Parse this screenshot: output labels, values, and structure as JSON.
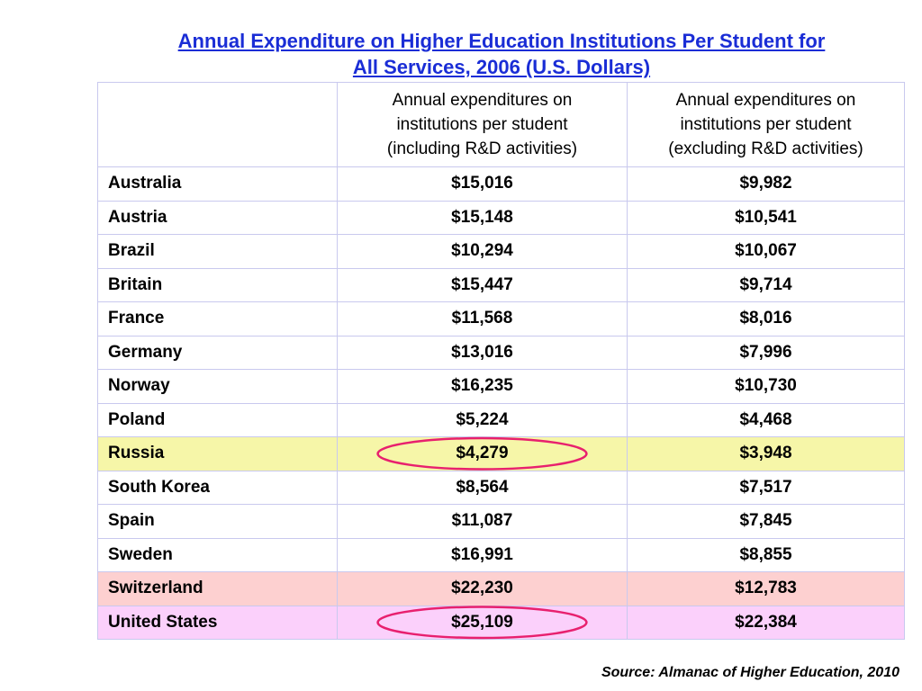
{
  "title_line1": "Annual Expenditure on Higher Education Institutions Per Student for",
  "title_line2": "All Services, 2006 (U.S. Dollars)",
  "source": "Source: Almanac of Higher Education, 2010",
  "colors": {
    "title": "#1a2dd6",
    "highlight_russia": "#f6f6a8",
    "highlight_switzerland": "#fdd0d0",
    "highlight_united_states": "#fbd0fb",
    "circle": "#e8206e"
  },
  "chart_data": {
    "type": "table",
    "title": "Annual Expenditure on Higher Education Institutions Per Student for All Services, 2006 (U.S. Dollars)",
    "columns": [
      "",
      "Annual expenditures on institutions per student (including R&D activities)",
      "Annual expenditures on institutions per student (excluding R&D activities)"
    ],
    "column_header_lines": [
      [],
      [
        "Annual expenditures on",
        "institutions per student",
        "(including R&D activities)"
      ],
      [
        "Annual expenditures on",
        "institutions per student",
        "(excluding R&D activities)"
      ]
    ],
    "rows": [
      {
        "country": "Australia",
        "incl": "$15,016",
        "excl": "$9,982",
        "highlight": ""
      },
      {
        "country": "Austria",
        "incl": "$15,148",
        "excl": "$10,541",
        "highlight": ""
      },
      {
        "country": "Brazil",
        "incl": "$10,294",
        "excl": "$10,067",
        "highlight": ""
      },
      {
        "country": "Britain",
        "incl": "$15,447",
        "excl": "$9,714",
        "highlight": ""
      },
      {
        "country": "France",
        "incl": "$11,568",
        "excl": "$8,016",
        "highlight": ""
      },
      {
        "country": "Germany",
        "incl": "$13,016",
        "excl": "$7,996",
        "highlight": ""
      },
      {
        "country": "Norway",
        "incl": "$16,235",
        "excl": "$10,730",
        "highlight": ""
      },
      {
        "country": "Poland",
        "incl": "$5,224",
        "excl": "$4,468",
        "highlight": ""
      },
      {
        "country": "Russia",
        "incl": "$4,279",
        "excl": "$3,948",
        "highlight": "#f6f6a8",
        "circled": true
      },
      {
        "country": "South Korea",
        "incl": "$8,564",
        "excl": "$7,517",
        "highlight": ""
      },
      {
        "country": "Spain",
        "incl": "$11,087",
        "excl": "$7,845",
        "highlight": ""
      },
      {
        "country": "Sweden",
        "incl": "$16,991",
        "excl": "$8,855",
        "highlight": ""
      },
      {
        "country": "Switzerland",
        "incl": "$22,230",
        "excl": "$12,783",
        "highlight": "#fdd0d0"
      },
      {
        "country": "United States",
        "incl": "$25,109",
        "excl": "$22,384",
        "highlight": "#fbd0fb",
        "circled": true
      }
    ]
  }
}
